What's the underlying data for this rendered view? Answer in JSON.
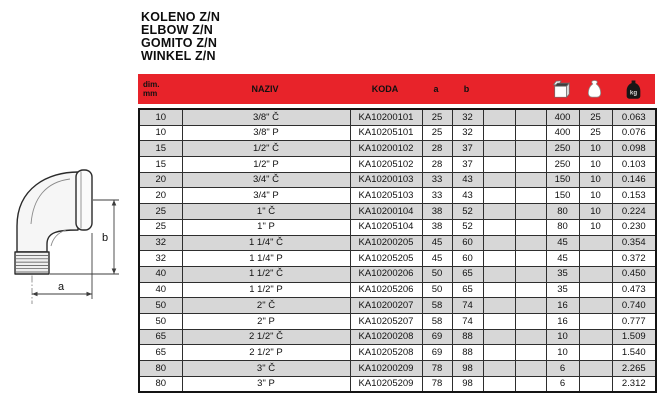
{
  "title_lines": [
    "KOLENO Z/N",
    "ELBOW Z/N",
    "GOMITO Z/N",
    "WINKEL Z/N"
  ],
  "colors": {
    "header_red": "#e8232a",
    "row_shaded": "#d7d7d7",
    "grid_line": "#2e2e2e",
    "outer_border": "#141414",
    "text": "#111111"
  },
  "drawing": {
    "dim_a_label": "a",
    "dim_b_label": "b"
  },
  "icons": {
    "box": "box-icon",
    "bag": "bag-icon",
    "kg": "kg-weight-icon",
    "kg_label": "kg"
  },
  "table": {
    "header": {
      "dim_line1": "dim.",
      "dim_line2": "mm",
      "naziv": "NAZIV",
      "koda": "KODA",
      "a": "a",
      "b": "b"
    },
    "columns": [
      {
        "key": "dim"
      },
      {
        "key": "naziv"
      },
      {
        "key": "koda"
      },
      {
        "key": "a"
      },
      {
        "key": "b"
      },
      {
        "key": "e1"
      },
      {
        "key": "e2"
      },
      {
        "key": "box"
      },
      {
        "key": "bag"
      },
      {
        "key": "kg"
      }
    ],
    "rows": [
      {
        "dim": "10",
        "naziv": "3/8\" Č",
        "koda": "KA10200101",
        "a": "25",
        "b": "32",
        "e1": "",
        "e2": "",
        "box": "400",
        "bag": "25",
        "kg": "0.063"
      },
      {
        "dim": "10",
        "naziv": "3/8\" P",
        "koda": "KA10205101",
        "a": "25",
        "b": "32",
        "e1": "",
        "e2": "",
        "box": "400",
        "bag": "25",
        "kg": "0.076"
      },
      {
        "dim": "15",
        "naziv": "1/2\" Č",
        "koda": "KA10200102",
        "a": "28",
        "b": "37",
        "e1": "",
        "e2": "",
        "box": "250",
        "bag": "10",
        "kg": "0.098"
      },
      {
        "dim": "15",
        "naziv": "1/2\" P",
        "koda": "KA10205102",
        "a": "28",
        "b": "37",
        "e1": "",
        "e2": "",
        "box": "250",
        "bag": "10",
        "kg": "0.103"
      },
      {
        "dim": "20",
        "naziv": "3/4\" Č",
        "koda": "KA10200103",
        "a": "33",
        "b": "43",
        "e1": "",
        "e2": "",
        "box": "150",
        "bag": "10",
        "kg": "0.146"
      },
      {
        "dim": "20",
        "naziv": "3/4\" P",
        "koda": "KA10205103",
        "a": "33",
        "b": "43",
        "e1": "",
        "e2": "",
        "box": "150",
        "bag": "10",
        "kg": "0.153"
      },
      {
        "dim": "25",
        "naziv": "1\" Č",
        "koda": "KA10200104",
        "a": "38",
        "b": "52",
        "e1": "",
        "e2": "",
        "box": "80",
        "bag": "10",
        "kg": "0.224"
      },
      {
        "dim": "25",
        "naziv": "1\" P",
        "koda": "KA10205104",
        "a": "38",
        "b": "52",
        "e1": "",
        "e2": "",
        "box": "80",
        "bag": "10",
        "kg": "0.230"
      },
      {
        "dim": "32",
        "naziv": "1 1/4\" Č",
        "koda": "KA10200205",
        "a": "45",
        "b": "60",
        "e1": "",
        "e2": "",
        "box": "45",
        "bag": "",
        "kg": "0.354"
      },
      {
        "dim": "32",
        "naziv": "1 1/4\" P",
        "koda": "KA10205205",
        "a": "45",
        "b": "60",
        "e1": "",
        "e2": "",
        "box": "45",
        "bag": "",
        "kg": "0.372"
      },
      {
        "dim": "40",
        "naziv": "1 1/2\" Č",
        "koda": "KA10200206",
        "a": "50",
        "b": "65",
        "e1": "",
        "e2": "",
        "box": "35",
        "bag": "",
        "kg": "0.450"
      },
      {
        "dim": "40",
        "naziv": "1 1/2\" P",
        "koda": "KA10205206",
        "a": "50",
        "b": "65",
        "e1": "",
        "e2": "",
        "box": "35",
        "bag": "",
        "kg": "0.473"
      },
      {
        "dim": "50",
        "naziv": "2\" Č",
        "koda": "KA10200207",
        "a": "58",
        "b": "74",
        "e1": "",
        "e2": "",
        "box": "16",
        "bag": "",
        "kg": "0.740"
      },
      {
        "dim": "50",
        "naziv": "2\" P",
        "koda": "KA10205207",
        "a": "58",
        "b": "74",
        "e1": "",
        "e2": "",
        "box": "16",
        "bag": "",
        "kg": "0.777"
      },
      {
        "dim": "65",
        "naziv": "2 1/2\" Č",
        "koda": "KA10200208",
        "a": "69",
        "b": "88",
        "e1": "",
        "e2": "",
        "box": "10",
        "bag": "",
        "kg": "1.509"
      },
      {
        "dim": "65",
        "naziv": "2 1/2\" P",
        "koda": "KA10205208",
        "a": "69",
        "b": "88",
        "e1": "",
        "e2": "",
        "box": "10",
        "bag": "",
        "kg": "1.540"
      },
      {
        "dim": "80",
        "naziv": "3\" Č",
        "koda": "KA10200209",
        "a": "78",
        "b": "98",
        "e1": "",
        "e2": "",
        "box": "6",
        "bag": "",
        "kg": "2.265"
      },
      {
        "dim": "80",
        "naziv": "3\" P",
        "koda": "KA10205209",
        "a": "78",
        "b": "98",
        "e1": "",
        "e2": "",
        "box": "6",
        "bag": "",
        "kg": "2.312"
      }
    ]
  }
}
